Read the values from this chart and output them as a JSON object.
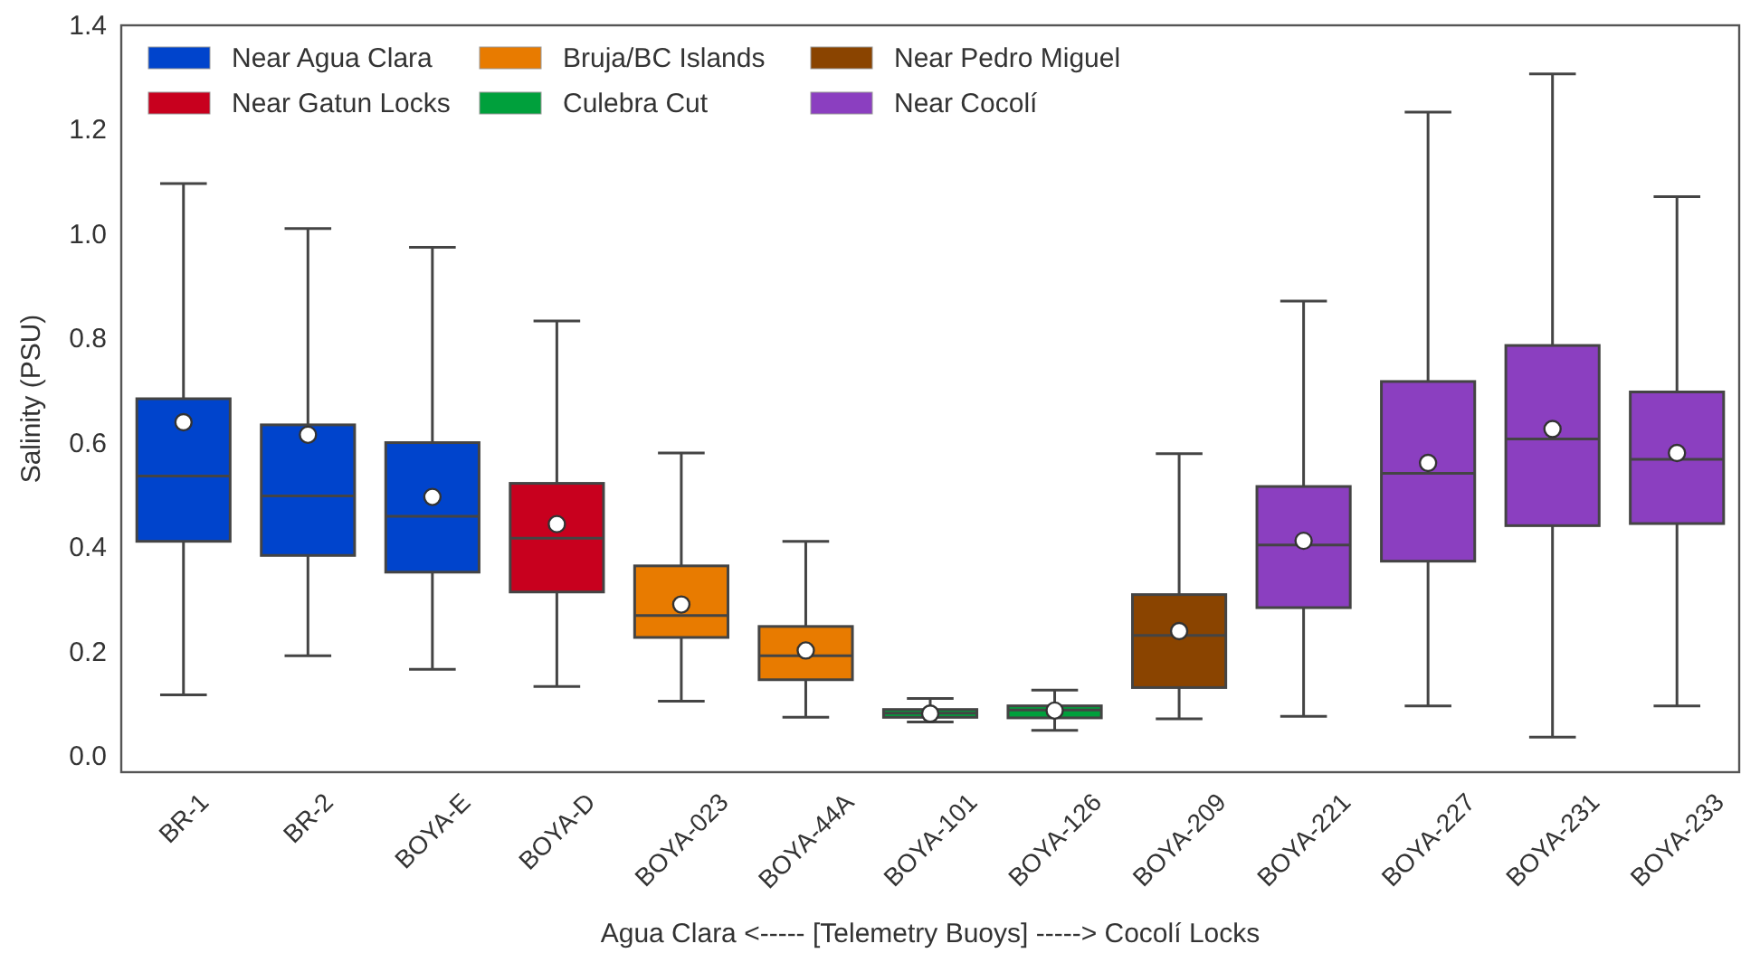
{
  "chart_data": {
    "type": "box",
    "xlabel": "Agua Clara <----- [Telemetry Buoys] -----> Cocolí Locks",
    "ylabel": "Salinity (PSU)",
    "categories": [
      "BR-1",
      "BR-2",
      "BOYA-E",
      "BOYA-D",
      "BOYA-023",
      "BOYA-44A",
      "BOYA-101",
      "BOYA-126",
      "BOYA-209",
      "BOYA-221",
      "BOYA-227",
      "BOYA-231",
      "BOYA-233"
    ],
    "ylim": [
      -0.03,
      1.4
    ],
    "yticks": [
      {
        "value": 0,
        "label": "0.0"
      },
      0.2,
      0.4,
      0.6,
      0.8,
      {
        "value": 1,
        "label": "1.0"
      },
      1.2,
      1.4
    ],
    "legend": "top left",
    "grid": false,
    "series": [
      {
        "name": "Near Agua Clara",
        "color": "#0044cc",
        "x": [
          "BR-1",
          "BR-2",
          "BOYA-E"
        ],
        "boxes": [
          {
            "low": 0.118,
            "q1": 0.412,
            "median": 0.537,
            "q3": 0.685,
            "high": 1.097,
            "mean": 0.64
          },
          {
            "low": 0.193,
            "q1": 0.385,
            "median": 0.499,
            "q3": 0.635,
            "high": 1.011,
            "mean": 0.616
          },
          {
            "low": 0.167,
            "q1": 0.353,
            "median": 0.46,
            "q3": 0.601,
            "high": 0.975,
            "mean": 0.497
          }
        ]
      },
      {
        "name": "Near Gatun Locks",
        "color": "#c8001e",
        "x": [
          "BOYA-D"
        ],
        "boxes": [
          {
            "low": 0.134,
            "q1": 0.315,
            "median": 0.418,
            "q3": 0.523,
            "high": 0.834,
            "mean": 0.445
          }
        ]
      },
      {
        "name": "Bruja/BC Islands",
        "color": "#e87b00",
        "x": [
          "BOYA-023",
          "BOYA-44A"
        ],
        "boxes": [
          {
            "low": 0.106,
            "q1": 0.228,
            "median": 0.27,
            "q3": 0.365,
            "high": 0.581,
            "mean": 0.291
          },
          {
            "low": 0.075,
            "q1": 0.147,
            "median": 0.193,
            "q3": 0.249,
            "high": 0.412,
            "mean": 0.203
          }
        ]
      },
      {
        "name": "Culebra Cut",
        "color": "#00a03c",
        "x": [
          "BOYA-101",
          "BOYA-126"
        ],
        "boxes": [
          {
            "low": 0.066,
            "q1": 0.075,
            "median": 0.083,
            "q3": 0.09,
            "high": 0.111,
            "mean": 0.082
          },
          {
            "low": 0.05,
            "q1": 0.074,
            "median": 0.089,
            "q3": 0.097,
            "high": 0.127,
            "mean": 0.088
          }
        ]
      },
      {
        "name": "Near Pedro Miguel",
        "color": "#8a4400",
        "x": [
          "BOYA-209"
        ],
        "boxes": [
          {
            "low": 0.072,
            "q1": 0.132,
            "median": 0.232,
            "q3": 0.31,
            "high": 0.58,
            "mean": 0.24
          }
        ]
      },
      {
        "name": "Near Cocolí",
        "color": "#8b3fc0",
        "x": [
          "BOYA-221",
          "BOYA-227",
          "BOYA-231",
          "BOYA-233"
        ],
        "boxes": [
          {
            "low": 0.077,
            "q1": 0.285,
            "median": 0.405,
            "q3": 0.517,
            "high": 0.872,
            "mean": 0.413
          },
          {
            "low": 0.097,
            "q1": 0.374,
            "median": 0.542,
            "q3": 0.718,
            "high": 1.234,
            "mean": 0.562
          },
          {
            "low": 0.037,
            "q1": 0.442,
            "median": 0.608,
            "q3": 0.787,
            "high": 1.307,
            "mean": 0.627
          },
          {
            "low": 0.097,
            "q1": 0.446,
            "median": 0.569,
            "q3": 0.698,
            "high": 1.072,
            "mean": 0.581
          }
        ]
      }
    ]
  }
}
